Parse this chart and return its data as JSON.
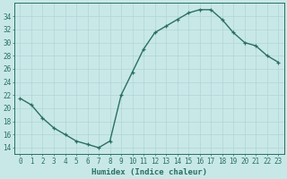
{
  "x": [
    0,
    1,
    2,
    3,
    4,
    5,
    6,
    7,
    8,
    9,
    10,
    11,
    12,
    13,
    14,
    15,
    16,
    17,
    18,
    19,
    20,
    21,
    22,
    23
  ],
  "y": [
    21.5,
    20.5,
    18.5,
    17.0,
    16.0,
    15.0,
    14.5,
    14.0,
    15.0,
    22.0,
    25.5,
    29.0,
    31.5,
    32.5,
    33.5,
    34.5,
    35.0,
    35.0,
    33.5,
    31.5,
    30.0,
    29.5,
    28.0,
    27.0
  ],
  "line_color": "#2a7060",
  "marker": "+",
  "bg_color": "#c8e8e8",
  "grid_color": "#b0d4d4",
  "xlabel": "Humidex (Indice chaleur)",
  "xlim": [
    -0.5,
    23.5
  ],
  "ylim": [
    13,
    36
  ],
  "yticks": [
    14,
    16,
    18,
    20,
    22,
    24,
    26,
    28,
    30,
    32,
    34
  ],
  "xticks": [
    0,
    1,
    2,
    3,
    4,
    5,
    6,
    7,
    8,
    9,
    10,
    11,
    12,
    13,
    14,
    15,
    16,
    17,
    18,
    19,
    20,
    21,
    22,
    23
  ],
  "xtick_labels": [
    "0",
    "1",
    "2",
    "3",
    "4",
    "5",
    "6",
    "7",
    "8",
    "9",
    "10",
    "11",
    "12",
    "13",
    "14",
    "15",
    "16",
    "17",
    "18",
    "19",
    "20",
    "21",
    "22",
    "23"
  ],
  "axis_color": "#2a7060",
  "tick_color": "#2a7060",
  "xlabel_fontsize": 6.5,
  "tick_fontsize": 5.5,
  "linewidth": 1.0,
  "markersize": 3.5,
  "markeredgewidth": 0.9
}
